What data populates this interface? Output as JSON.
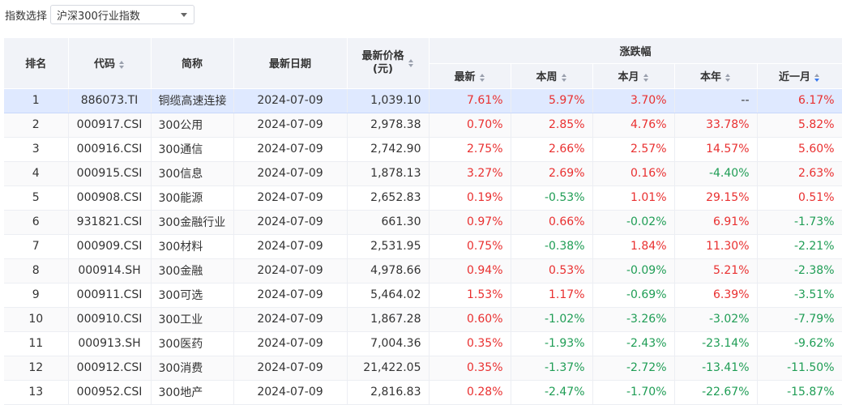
{
  "filter": {
    "label": "指数选择",
    "selected": "沪深300行业指数"
  },
  "colors": {
    "up": "#e93030",
    "down": "#1f9d55",
    "header_bg": "#f1f3f8",
    "selected_row": "#dfe9ff"
  },
  "table": {
    "headers": {
      "rank": "排名",
      "code": "代码",
      "name": "简称",
      "date": "最新日期",
      "price_line1": "最新价格",
      "price_line2": "(元)",
      "change_group": "涨跌幅",
      "latest": "最新",
      "week": "本周",
      "month": "本月",
      "year": "本年",
      "one_month": "近一月"
    },
    "rows": [
      {
        "rank": "1",
        "code": "886073.TI",
        "name": "铜缆高速连接",
        "date": "2024-07-09",
        "price": "1,039.10",
        "latest": "7.61%",
        "week": "5.97%",
        "month": "3.70%",
        "year": "--",
        "one_month": "6.17%"
      },
      {
        "rank": "2",
        "code": "000917.CSI",
        "name": "300公用",
        "date": "2024-07-09",
        "price": "2,978.38",
        "latest": "0.70%",
        "week": "2.85%",
        "month": "4.76%",
        "year": "33.78%",
        "one_month": "5.82%"
      },
      {
        "rank": "3",
        "code": "000916.CSI",
        "name": "300通信",
        "date": "2024-07-09",
        "price": "2,742.90",
        "latest": "2.75%",
        "week": "2.66%",
        "month": "2.57%",
        "year": "14.57%",
        "one_month": "5.60%"
      },
      {
        "rank": "4",
        "code": "000915.CSI",
        "name": "300信息",
        "date": "2024-07-09",
        "price": "1,878.13",
        "latest": "3.27%",
        "week": "2.69%",
        "month": "0.16%",
        "year": "-4.40%",
        "one_month": "2.63%"
      },
      {
        "rank": "5",
        "code": "000908.CSI",
        "name": "300能源",
        "date": "2024-07-09",
        "price": "2,652.83",
        "latest": "0.19%",
        "week": "-0.53%",
        "month": "1.01%",
        "year": "29.15%",
        "one_month": "0.51%"
      },
      {
        "rank": "6",
        "code": "931821.CSI",
        "name": "300金融行业",
        "date": "2024-07-09",
        "price": "661.30",
        "latest": "0.97%",
        "week": "0.66%",
        "month": "-0.02%",
        "year": "6.91%",
        "one_month": "-1.73%"
      },
      {
        "rank": "7",
        "code": "000909.CSI",
        "name": "300材料",
        "date": "2024-07-09",
        "price": "2,531.95",
        "latest": "0.75%",
        "week": "-0.38%",
        "month": "1.84%",
        "year": "11.30%",
        "one_month": "-2.21%"
      },
      {
        "rank": "8",
        "code": "000914.SH",
        "name": "300金融",
        "date": "2024-07-09",
        "price": "4,978.66",
        "latest": "0.94%",
        "week": "0.53%",
        "month": "-0.09%",
        "year": "5.21%",
        "one_month": "-2.38%"
      },
      {
        "rank": "9",
        "code": "000911.CSI",
        "name": "300可选",
        "date": "2024-07-09",
        "price": "5,464.02",
        "latest": "1.53%",
        "week": "1.17%",
        "month": "-0.69%",
        "year": "6.39%",
        "one_month": "-3.51%"
      },
      {
        "rank": "10",
        "code": "000910.CSI",
        "name": "300工业",
        "date": "2024-07-09",
        "price": "1,867.28",
        "latest": "0.60%",
        "week": "-1.02%",
        "month": "-3.26%",
        "year": "-3.02%",
        "one_month": "-7.79%"
      },
      {
        "rank": "11",
        "code": "000913.SH",
        "name": "300医药",
        "date": "2024-07-09",
        "price": "7,004.36",
        "latest": "0.35%",
        "week": "-1.93%",
        "month": "-2.43%",
        "year": "-23.14%",
        "one_month": "-9.62%"
      },
      {
        "rank": "12",
        "code": "000912.CSI",
        "name": "300消费",
        "date": "2024-07-09",
        "price": "21,422.05",
        "latest": "0.35%",
        "week": "-1.37%",
        "month": "-2.72%",
        "year": "-13.41%",
        "one_month": "-11.50%"
      },
      {
        "rank": "13",
        "code": "000952.CSI",
        "name": "300地产",
        "date": "2024-07-09",
        "price": "2,816.83",
        "latest": "0.28%",
        "week": "-2.47%",
        "month": "-1.70%",
        "year": "-22.67%",
        "one_month": "-15.87%"
      }
    ]
  }
}
